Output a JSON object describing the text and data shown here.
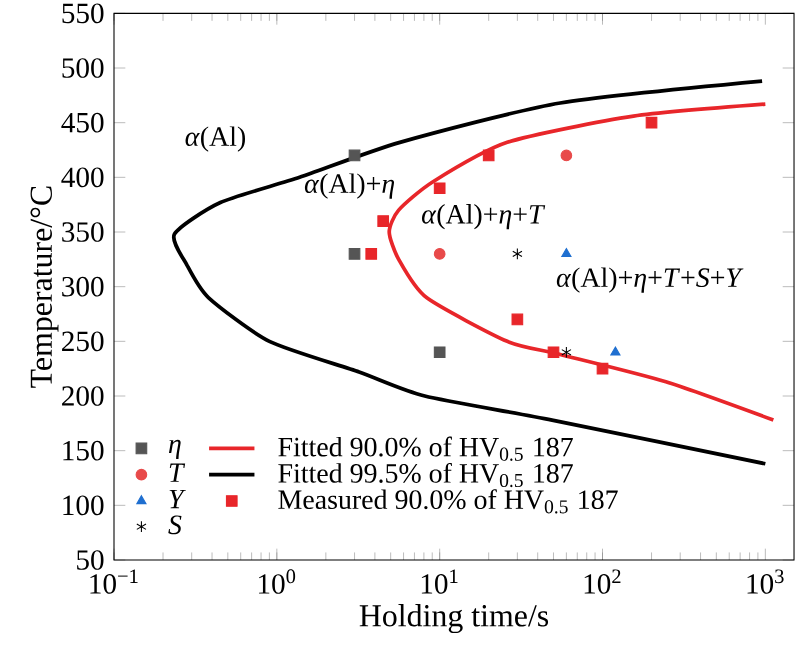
{
  "chart_data": {
    "type": "scatter",
    "xlabel": "Holding time/s",
    "ylabel": "Temperature/°C",
    "log": "x",
    "grid": false,
    "legend": "bottom left",
    "xlim": [
      0.1,
      1500
    ],
    "ylim": [
      50,
      550
    ],
    "xticks": [
      {
        "value": 0.1,
        "label": "10$^{−1}$"
      },
      {
        "value": 1,
        "label": "10$^{0}$"
      },
      {
        "value": 10,
        "label": "10$^{1}$"
      },
      {
        "value": 100,
        "label": "10$^{2}$"
      },
      {
        "value": 1000,
        "label": "10$^{3}$"
      }
    ],
    "yticks": [
      50,
      100,
      150,
      200,
      250,
      300,
      350,
      400,
      450,
      500,
      550
    ],
    "annotations": [
      "*α*(Al)",
      "*α*(Al)+*η*",
      "*α*(Al)+*η*+*T*",
      "*α*(Al)+*η*+*T*+*S*+*Y*"
    ],
    "series": [
      {
        "name": "*η*",
        "type": "scatter",
        "marker": "square",
        "color": "#555555",
        "x": [
          3,
          3,
          10
        ],
        "values": [
          420,
          330,
          240
        ]
      },
      {
        "name": "*T*",
        "type": "scatter",
        "marker": "circle",
        "color": "#e84a4a",
        "x": [
          60,
          10
        ],
        "values": [
          420,
          330
        ]
      },
      {
        "name": "*Y*",
        "type": "scatter",
        "marker": "triangle",
        "color": "#1f6fd0",
        "x": [
          60,
          120
        ],
        "values": [
          330,
          240
        ]
      },
      {
        "name": "*S*",
        "type": "scatter",
        "marker": "cross",
        "color": "#000000",
        "x": [
          30,
          60
        ],
        "values": [
          330,
          240
        ]
      },
      {
        "name": "Fitted 90.0% of HV$_{0.5}$ 187",
        "type": "line",
        "marker": "none",
        "color": "#e8262a",
        "x": [
          1000,
          155,
          26,
          9.1,
          5.6,
          4.9,
          5.6,
          8.3,
          26,
          55,
          245,
          1120
        ],
        "values": [
          467,
          456,
          432,
          396,
          370,
          350,
          325,
          290,
          250,
          238,
          213,
          178
        ]
      },
      {
        "name": "Fitted 99.5% of HV$_{0.5}$ 187",
        "type": "line",
        "marker": "none",
        "color": "#000000",
        "x": [
          955,
          55,
          5.7,
          1.38,
          0.45,
          0.235,
          0.28,
          0.38,
          0.9,
          3.2,
          8.1,
          49,
          1000
        ],
        "values": [
          488,
          468,
          432,
          400,
          377,
          348,
          320,
          290,
          250,
          222,
          200,
          178,
          138
        ]
      },
      {
        "name": "Measured 90.0% of HV$_{0.5}$ 187",
        "type": "scatter",
        "marker": "square",
        "color": "#e8262a",
        "x": [
          200,
          20,
          10,
          4.5,
          3.8,
          30,
          50,
          100
        ],
        "values": [
          450,
          420,
          390,
          360,
          330,
          270,
          240,
          225
        ]
      }
    ]
  }
}
